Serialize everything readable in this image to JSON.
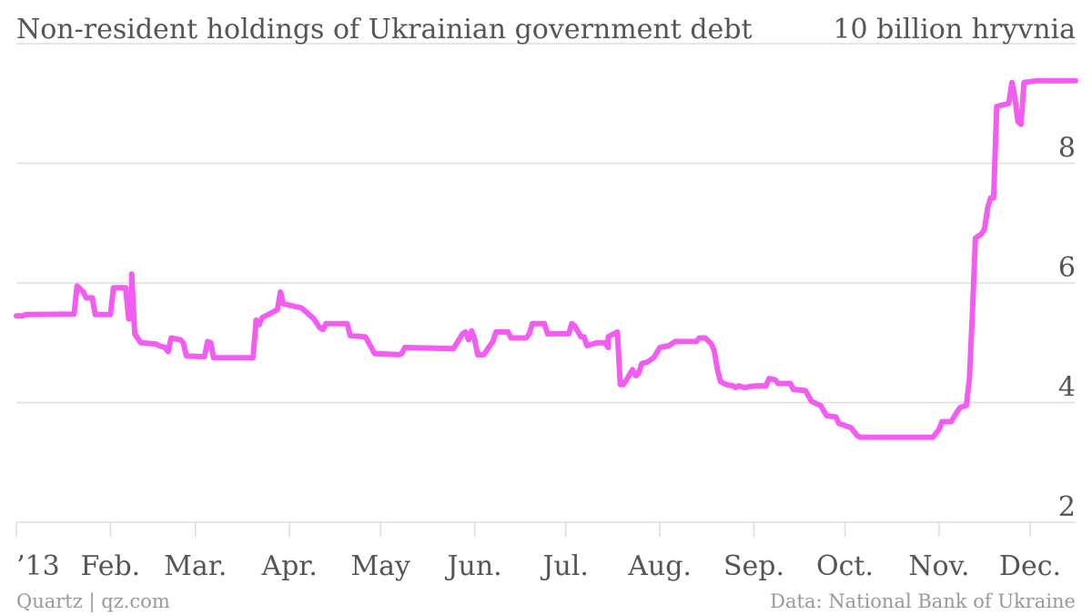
{
  "colors": {
    "line": "#f25cf0",
    "grid": "#dddddd",
    "text": "#555555",
    "footer": "#999999"
  },
  "footer": {
    "left": "Quartz | qz.com",
    "right": "Data: National Bank of Ukraine"
  },
  "chart_data": {
    "type": "line",
    "title": "Non-resident holdings of Ukrainian government debt",
    "ylabel": "10 billion hryvnia",
    "ylim": [
      2,
      10
    ],
    "yticks": [
      2,
      4,
      6,
      8
    ],
    "x_range": [
      "2013-01-01",
      "2013-12-16"
    ],
    "xticks": [
      {
        "date": "2013-01-01",
        "label": "’13"
      },
      {
        "date": "2013-02-01",
        "label": "Feb."
      },
      {
        "date": "2013-03-01",
        "label": "Mar."
      },
      {
        "date": "2013-04-01",
        "label": "Apr."
      },
      {
        "date": "2013-05-01",
        "label": "May"
      },
      {
        "date": "2013-06-01",
        "label": "Jun."
      },
      {
        "date": "2013-07-01",
        "label": "Jul."
      },
      {
        "date": "2013-08-01",
        "label": "Aug."
      },
      {
        "date": "2013-09-01",
        "label": "Sep."
      },
      {
        "date": "2013-10-01",
        "label": "Oct."
      },
      {
        "date": "2013-11-01",
        "label": "Nov."
      },
      {
        "date": "2013-12-01",
        "label": "Dec."
      }
    ],
    "grid": true,
    "series": [
      {
        "points": [
          [
            "2013-01-01",
            5.45
          ],
          [
            "2013-01-03",
            5.45
          ],
          [
            "2013-01-04",
            5.47
          ],
          [
            "2013-01-20",
            5.48
          ],
          [
            "2013-01-21",
            5.95
          ],
          [
            "2013-01-23",
            5.85
          ],
          [
            "2013-01-24",
            5.75
          ],
          [
            "2013-01-26",
            5.75
          ],
          [
            "2013-01-27",
            5.47
          ],
          [
            "2013-02-01",
            5.47
          ],
          [
            "2013-02-02",
            5.92
          ],
          [
            "2013-02-06",
            5.92
          ],
          [
            "2013-02-07",
            5.4
          ],
          [
            "2013-02-08",
            5.4
          ],
          [
            "2013-02-08",
            6.15
          ],
          [
            "2013-02-09",
            5.15
          ],
          [
            "2013-02-11",
            5.0
          ],
          [
            "2013-02-16",
            4.98
          ],
          [
            "2013-02-17",
            4.95
          ],
          [
            "2013-02-19",
            4.92
          ],
          [
            "2013-02-20",
            4.85
          ],
          [
            "2013-02-21",
            5.08
          ],
          [
            "2013-02-24",
            5.05
          ],
          [
            "2013-02-25",
            5.0
          ],
          [
            "2013-02-26",
            4.78
          ],
          [
            "2013-03-02",
            4.77
          ],
          [
            "2013-03-04",
            4.77
          ],
          [
            "2013-03-05",
            5.02
          ],
          [
            "2013-03-06",
            5.0
          ],
          [
            "2013-03-07",
            4.75
          ],
          [
            "2013-03-20",
            4.75
          ],
          [
            "2013-03-21",
            5.38
          ],
          [
            "2013-03-22",
            5.3
          ],
          [
            "2013-03-23",
            5.42
          ],
          [
            "2013-03-26",
            5.5
          ],
          [
            "2013-03-28",
            5.55
          ],
          [
            "2013-03-29",
            5.85
          ],
          [
            "2013-03-30",
            5.65
          ],
          [
            "2013-04-05",
            5.58
          ],
          [
            "2013-04-09",
            5.4
          ],
          [
            "2013-04-11",
            5.25
          ],
          [
            "2013-04-12",
            5.22
          ],
          [
            "2013-04-13",
            5.32
          ],
          [
            "2013-04-20",
            5.32
          ],
          [
            "2013-04-21",
            5.12
          ],
          [
            "2013-04-26",
            5.1
          ],
          [
            "2013-04-29",
            4.82
          ],
          [
            "2013-05-07",
            4.8
          ],
          [
            "2013-05-08",
            4.82
          ],
          [
            "2013-05-09",
            4.92
          ],
          [
            "2013-05-25",
            4.9
          ],
          [
            "2013-05-28",
            5.15
          ],
          [
            "2013-05-29",
            5.18
          ],
          [
            "2013-05-30",
            5.05
          ],
          [
            "2013-05-31",
            5.2
          ],
          [
            "2013-06-01",
            5.05
          ],
          [
            "2013-06-02",
            4.8
          ],
          [
            "2013-06-04",
            4.8
          ],
          [
            "2013-06-06",
            4.95
          ],
          [
            "2013-06-07",
            5.02
          ],
          [
            "2013-06-08",
            5.18
          ],
          [
            "2013-06-12",
            5.18
          ],
          [
            "2013-06-13",
            5.08
          ],
          [
            "2013-06-18",
            5.08
          ],
          [
            "2013-06-19",
            5.15
          ],
          [
            "2013-06-20",
            5.32
          ],
          [
            "2013-06-24",
            5.32
          ],
          [
            "2013-06-25",
            5.15
          ],
          [
            "2013-07-02",
            5.15
          ],
          [
            "2013-07-03",
            5.32
          ],
          [
            "2013-07-04",
            5.28
          ],
          [
            "2013-07-06",
            5.1
          ],
          [
            "2013-07-07",
            5.1
          ],
          [
            "2013-07-08",
            4.95
          ],
          [
            "2013-07-10",
            4.98
          ],
          [
            "2013-07-11",
            5.0
          ],
          [
            "2013-07-14",
            5.0
          ],
          [
            "2013-07-15",
            4.92
          ],
          [
            "2013-07-15",
            5.1
          ],
          [
            "2013-07-18",
            5.18
          ],
          [
            "2013-07-19",
            4.3
          ],
          [
            "2013-07-20",
            4.3
          ],
          [
            "2013-07-21",
            4.38
          ],
          [
            "2013-07-23",
            4.55
          ],
          [
            "2013-07-24",
            4.45
          ],
          [
            "2013-07-25",
            4.48
          ],
          [
            "2013-07-26",
            4.65
          ],
          [
            "2013-07-28",
            4.68
          ],
          [
            "2013-07-30",
            4.75
          ],
          [
            "2013-08-01",
            4.92
          ],
          [
            "2013-08-04",
            4.95
          ],
          [
            "2013-08-06",
            5.02
          ],
          [
            "2013-08-13",
            5.02
          ],
          [
            "2013-08-14",
            5.08
          ],
          [
            "2013-08-16",
            5.08
          ],
          [
            "2013-08-18",
            4.98
          ],
          [
            "2013-08-19",
            4.85
          ],
          [
            "2013-08-20",
            4.55
          ],
          [
            "2013-08-21",
            4.35
          ],
          [
            "2013-08-23",
            4.3
          ],
          [
            "2013-08-25",
            4.28
          ],
          [
            "2013-08-26",
            4.25
          ],
          [
            "2013-08-27",
            4.28
          ],
          [
            "2013-08-29",
            4.25
          ],
          [
            "2013-08-31",
            4.27
          ],
          [
            "2013-09-02",
            4.28
          ],
          [
            "2013-09-05",
            4.28
          ],
          [
            "2013-09-06",
            4.4
          ],
          [
            "2013-09-08",
            4.38
          ],
          [
            "2013-09-09",
            4.32
          ],
          [
            "2013-09-13",
            4.32
          ],
          [
            "2013-09-14",
            4.22
          ],
          [
            "2013-09-18",
            4.2
          ],
          [
            "2013-09-20",
            4.02
          ],
          [
            "2013-09-23",
            3.95
          ],
          [
            "2013-09-25",
            3.78
          ],
          [
            "2013-09-28",
            3.76
          ],
          [
            "2013-09-29",
            3.65
          ],
          [
            "2013-10-03",
            3.58
          ],
          [
            "2013-10-05",
            3.45
          ],
          [
            "2013-10-06",
            3.42
          ],
          [
            "2013-10-13",
            3.42
          ],
          [
            "2013-10-30",
            3.42
          ],
          [
            "2013-11-01",
            3.55
          ],
          [
            "2013-11-02",
            3.68
          ],
          [
            "2013-11-05",
            3.68
          ],
          [
            "2013-11-07",
            3.85
          ],
          [
            "2013-11-08",
            3.92
          ],
          [
            "2013-11-10",
            3.95
          ],
          [
            "2013-11-11",
            4.4
          ],
          [
            "2013-11-12",
            5.5
          ],
          [
            "2013-11-13",
            6.75
          ],
          [
            "2013-11-15",
            6.82
          ],
          [
            "2013-11-16",
            6.9
          ],
          [
            "2013-11-17",
            7.25
          ],
          [
            "2013-11-18",
            7.42
          ],
          [
            "2013-11-19",
            7.42
          ],
          [
            "2013-11-20",
            8.95
          ],
          [
            "2013-11-24",
            9.0
          ],
          [
            "2013-11-25",
            9.35
          ],
          [
            "2013-11-26",
            9.1
          ],
          [
            "2013-11-27",
            8.7
          ],
          [
            "2013-11-28",
            8.65
          ],
          [
            "2013-11-29",
            9.35
          ],
          [
            "2013-12-03",
            9.38
          ],
          [
            "2013-12-16",
            9.38
          ]
        ]
      }
    ]
  }
}
